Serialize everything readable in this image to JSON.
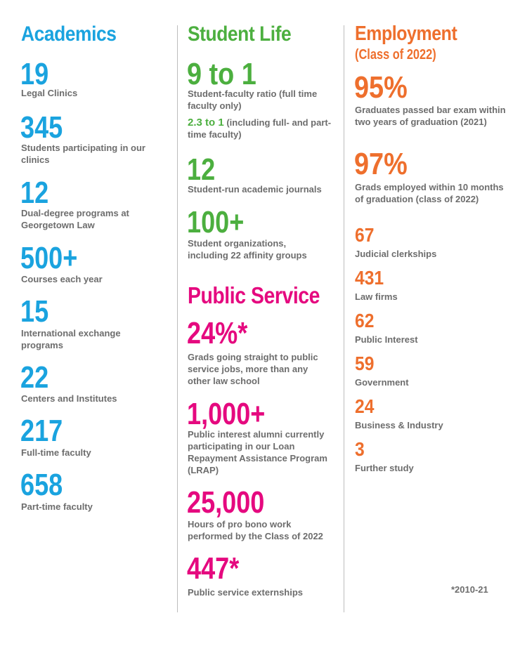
{
  "colors": {
    "academics": "#1aa3df",
    "student_life": "#4caf3f",
    "public_service": "#e5097f",
    "employment": "#ee6f2d",
    "label_gray": "#6d6d6d"
  },
  "academics": {
    "title": "Academics",
    "items": [
      {
        "value": "19",
        "label": "Legal Clinics"
      },
      {
        "value": "345",
        "label": "Students participating in our clinics"
      },
      {
        "value": "12",
        "label": "Dual-degree programs at Georgetown Law"
      },
      {
        "value": "500+",
        "label": "Courses each year"
      },
      {
        "value": "15",
        "label": "International exchange programs"
      },
      {
        "value": "22",
        "label": "Centers and Institutes"
      },
      {
        "value": "217",
        "label": "Full-time faculty"
      },
      {
        "value": "658",
        "label": "Part-time faculty"
      }
    ]
  },
  "student_life": {
    "title": "Student Life",
    "ratio": {
      "value": "9 to 1",
      "label": "Student-faculty ratio (full time faculty only)"
    },
    "ratio_alt": {
      "value": "2.3 to 1",
      "label": "(including full- and part-time faculty)"
    },
    "items": [
      {
        "value": "12",
        "label": "Student-run academic journals"
      },
      {
        "value": "100+",
        "label": "Student organizations, including 22 affinity groups"
      }
    ]
  },
  "public_service": {
    "title": "Public Service",
    "items": [
      {
        "value": "24%*",
        "label": "Grads going straight to public service jobs, more than any other law school"
      },
      {
        "value": "1,000+",
        "label": "Public interest alumni currently participating in our Loan Repayment Assistance Program (LRAP)"
      },
      {
        "value": "25,000",
        "label": "Hours of pro bono work performed by the Class of 2022"
      },
      {
        "value": "447*",
        "label": "Public service externships"
      }
    ]
  },
  "employment": {
    "title": "Employment",
    "subtitle": "(Class of 2022)",
    "big_items": [
      {
        "value": "95%",
        "label": "Graduates passed bar exam within two years of graduation (2021)"
      },
      {
        "value": "97%",
        "label": "Grads employed within 10 months of graduation (class of 2022)"
      }
    ],
    "items": [
      {
        "value": "67",
        "label": "Judicial clerkships"
      },
      {
        "value": "431",
        "label": "Law firms"
      },
      {
        "value": "62",
        "label": "Public Interest"
      },
      {
        "value": "59",
        "label": "Government"
      },
      {
        "value": "24",
        "label": "Business & Industry"
      },
      {
        "value": "3",
        "label": "Further study"
      }
    ]
  },
  "footnote": "*2010-21"
}
